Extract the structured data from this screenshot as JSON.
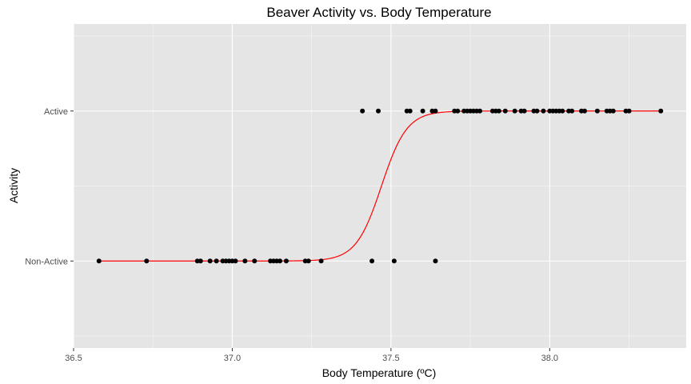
{
  "chart_data": {
    "type": "scatter",
    "title": "Beaver Activity vs. Body Temperature",
    "xlabel": "Body Temperature (ºC)",
    "ylabel": "Activity",
    "xlim": [
      36.5,
      38.43
    ],
    "ylim": [
      -0.58,
      1.58
    ],
    "x_ticks": [
      36.5,
      37.0,
      37.5,
      38.0
    ],
    "x_tick_labels": [
      "36.5",
      "37.0",
      "37.5",
      "38.0"
    ],
    "y_ticks": [
      0,
      1
    ],
    "y_tick_labels": [
      "Non-Active",
      "Active"
    ],
    "grid": true,
    "background": "#e5e5e5",
    "grid_color": "#ffffff",
    "point_color": "#000000",
    "curve_color": "#ff0000",
    "points_non_active_x": [
      36.58,
      36.73,
      36.89,
      36.9,
      36.93,
      36.95,
      36.97,
      36.98,
      36.99,
      37.0,
      37.01,
      37.04,
      37.07,
      37.12,
      37.13,
      37.14,
      37.15,
      37.17,
      37.23,
      37.24,
      37.28,
      37.44,
      37.51,
      37.64
    ],
    "points_active_x": [
      37.41,
      37.46,
      37.55,
      37.56,
      37.6,
      37.63,
      37.64,
      37.7,
      37.71,
      37.73,
      37.74,
      37.75,
      37.76,
      37.77,
      37.78,
      37.82,
      37.83,
      37.84,
      37.86,
      37.89,
      37.91,
      37.92,
      37.95,
      37.96,
      37.98,
      38.0,
      38.01,
      38.02,
      38.03,
      38.04,
      38.06,
      38.07,
      38.1,
      38.11,
      38.15,
      38.18,
      38.19,
      38.2,
      38.24,
      38.25,
      38.35
    ],
    "logistic_fit": {
      "x_range": [
        36.58,
        38.35
      ],
      "midpoint": 37.47,
      "slope": 25
    }
  }
}
